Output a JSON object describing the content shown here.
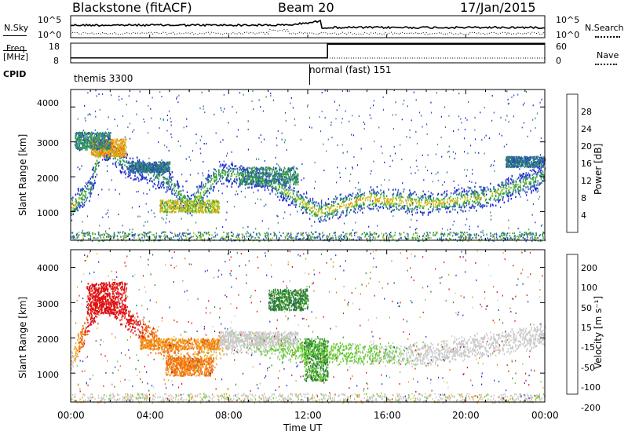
{
  "header": {
    "station": "Blackstone (fitACF)",
    "beam": "Beam 20",
    "date": "17/Jan/2015"
  },
  "left_labels": {
    "nsky": "N.Sky",
    "freq_line1": "Freq.",
    "freq_line2": "[MHz]",
    "cpid": "CPID"
  },
  "right_labels": {
    "nsearch": "N.Search",
    "nave": "Nave"
  },
  "cpid_segments": [
    {
      "label": "themis 3300"
    },
    {
      "label": "normal (fast) 151"
    }
  ],
  "noise_axis": {
    "left_ticks": [
      "10^5",
      "10^0"
    ],
    "right_ticks": [
      "10^5",
      "10^0"
    ]
  },
  "freq_axis": {
    "left_ticks": [
      "18",
      "8"
    ],
    "right_ticks": [
      "60",
      "0"
    ]
  },
  "time_axis": {
    "label": "Time UT",
    "ticks": [
      "00:00",
      "04:00",
      "08:00",
      "12:00",
      "16:00",
      "20:00",
      "00:00"
    ]
  },
  "power_panel": {
    "ylabel": "Slant Range [km]",
    "yticks": [
      "1000",
      "2000",
      "3000",
      "4000"
    ],
    "colorbar_label": "Power [dB]",
    "colorbar_ticks": [
      "4",
      "8",
      "12",
      "16",
      "20",
      "24",
      "28"
    ],
    "colors": [
      "#1a1ae6",
      "#2a4fb8",
      "#2f8a6a",
      "#3aa83a",
      "#b5c820",
      "#f0a010",
      "#ef6510",
      "#e01010"
    ]
  },
  "velocity_panel": {
    "ylabel": "Slant Range [km]",
    "yticks": [
      "1000",
      "2000",
      "3000",
      "4000"
    ],
    "colorbar_label": "Velocity [m s⁻¹]",
    "colorbar_ticks": [
      "200",
      "100",
      "50",
      "15",
      "-15",
      "-50",
      "-100",
      "-200"
    ],
    "colors": [
      "#2030c8",
      "#2a7a3a",
      "#66cc33",
      "#c8c8c8",
      "#f5a51e",
      "#f07010",
      "#e01010"
    ]
  },
  "chart_data": {
    "type": "heatmap",
    "title": "Blackstone (fitACF)  Beam 20  17/Jan/2015",
    "xlabel": "Time UT",
    "x_ticks": [
      "00:00",
      "04:00",
      "08:00",
      "12:00",
      "16:00",
      "20:00",
      "00:00"
    ],
    "xlim": [
      "00:00",
      "24:00"
    ],
    "ylabel": "Slant Range [km]",
    "ylim": [
      180,
      4500
    ],
    "cpid": [
      {
        "start": "00:00",
        "end": "12:00",
        "mode": "themis 3300"
      },
      {
        "start": "12:00",
        "end": "24:00",
        "mode": "normal (fast) 151"
      }
    ],
    "frequency_MHz": [
      {
        "start": "00:00",
        "end": "13:00",
        "value": 10.5
      },
      {
        "start": "13:00",
        "end": "24:00",
        "value": 17.5
      }
    ],
    "nave_axis": [
      0,
      60
    ],
    "power": {
      "unit": "dB",
      "colorbar_ticks": [
        4,
        8,
        12,
        16,
        20,
        24,
        28
      ],
      "bands": [
        {
          "hour": 0.0,
          "range_km": 1150,
          "power_dB": 24
        },
        {
          "hour": 1.0,
          "range_km": 1700,
          "power_dB": 12
        },
        {
          "hour": 1.5,
          "range_km": 2900,
          "power_dB": 22
        },
        {
          "hour": 3.0,
          "range_km": 2300,
          "power_dB": 10
        },
        {
          "hour": 5.0,
          "range_km": 1900,
          "power_dB": 12
        },
        {
          "hour": 6.0,
          "range_km": 1150,
          "power_dB": 20
        },
        {
          "hour": 7.5,
          "range_km": 2150,
          "power_dB": 16
        },
        {
          "hour": 10.0,
          "range_km": 1900,
          "power_dB": 14
        },
        {
          "hour": 12.5,
          "range_km": 1000,
          "power_dB": 22
        },
        {
          "hour": 15.0,
          "range_km": 1400,
          "power_dB": 24
        },
        {
          "hour": 18.0,
          "range_km": 1250,
          "power_dB": 22
        },
        {
          "hour": 21.0,
          "range_km": 1450,
          "power_dB": 20
        },
        {
          "hour": 24.0,
          "range_km": 2050,
          "power_dB": 14
        }
      ]
    },
    "velocity": {
      "unit": "m/s",
      "colorbar_ticks": [
        200,
        100,
        50,
        15,
        -15,
        -50,
        -100,
        -200
      ],
      "bands": [
        {
          "hour": 0.0,
          "range_km": 1350,
          "velocity_mps": 0
        },
        {
          "hour": 1.5,
          "range_km": 3200,
          "velocity_mps": -200
        },
        {
          "hour": 4.5,
          "range_km": 1850,
          "velocity_mps": -60
        },
        {
          "hour": 6.0,
          "range_km": 1250,
          "velocity_mps": -60
        },
        {
          "hour": 8.0,
          "range_km": 1950,
          "velocity_mps": 0
        },
        {
          "hour": 12.5,
          "range_km": 1600,
          "velocity_mps": 40
        },
        {
          "hour": 18.0,
          "range_km": 1550,
          "velocity_mps": 0
        },
        {
          "hour": 24.0,
          "range_km": 2100,
          "velocity_mps": 0
        }
      ]
    }
  }
}
